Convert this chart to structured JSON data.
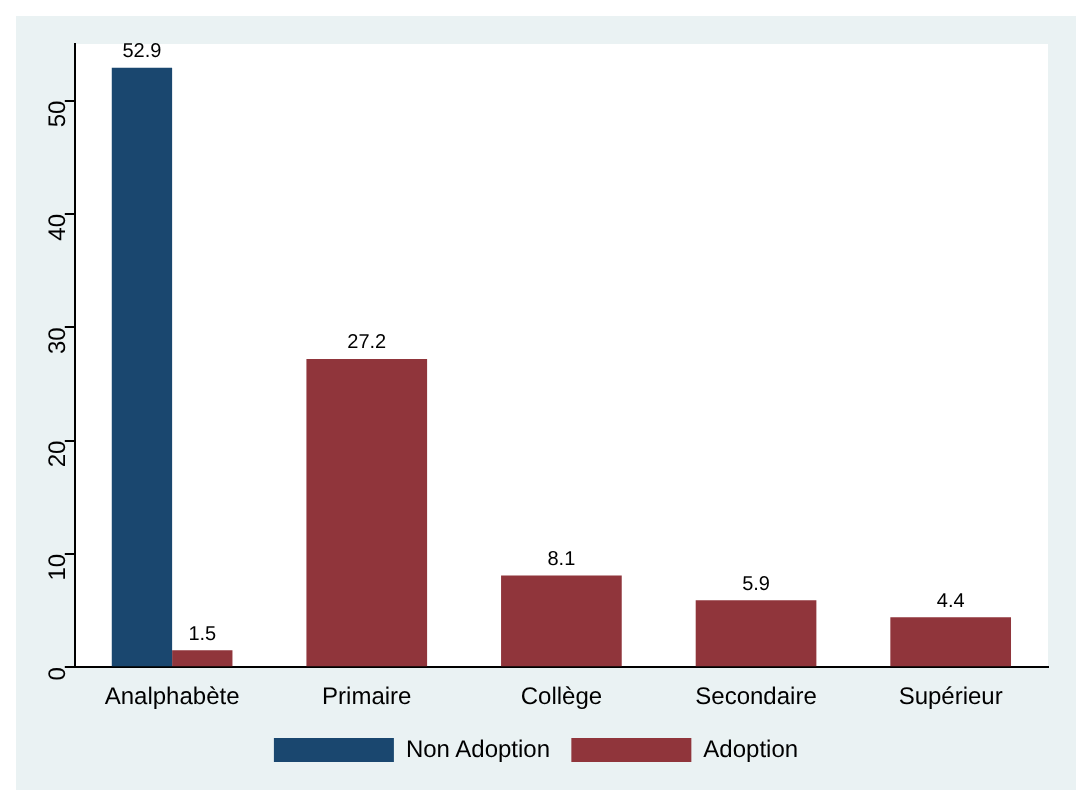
{
  "chart_data": {
    "type": "bar",
    "categories": [
      "Analphabète",
      "Primaire",
      "Collège",
      "Secondaire",
      "Supérieur"
    ],
    "series": [
      {
        "name": "Non Adoption",
        "color": "#1a476f",
        "values": [
          52.9,
          null,
          null,
          null,
          null
        ]
      },
      {
        "name": "Adoption",
        "color": "#90353b",
        "values": [
          1.5,
          27.2,
          8.1,
          5.9,
          4.4
        ]
      }
    ],
    "ylim": [
      0,
      55
    ],
    "yticks": [
      0,
      10,
      20,
      30,
      40,
      50
    ],
    "grid": false,
    "legend": "bottom",
    "data_labels": true
  }
}
